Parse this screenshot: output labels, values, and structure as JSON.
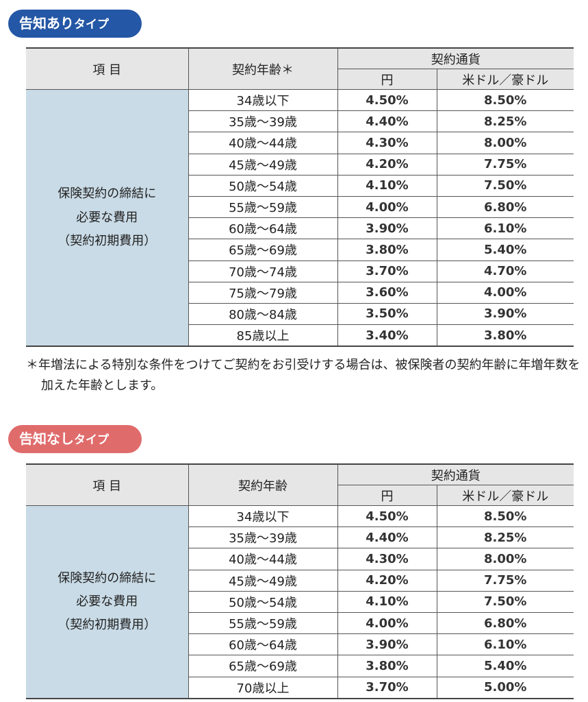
{
  "section1": {
    "badge_main": "告知あり",
    "badge_sub": "タイプ",
    "headers": {
      "item": "項 目",
      "age": "契約年齢＊",
      "currency": "契約通貨",
      "yen": "円",
      "usd_aud": "米ドル／豪ドル"
    },
    "item_label": [
      "保険契約の締結に",
      "必要な費用",
      "（契約初期費用）"
    ],
    "rows": [
      {
        "age": "34歳以下",
        "yen": "4.50%",
        "usd_aud": "8.50%"
      },
      {
        "age": "35歳〜39歳",
        "yen": "4.40%",
        "usd_aud": "8.25%"
      },
      {
        "age": "40歳〜44歳",
        "yen": "4.30%",
        "usd_aud": "8.00%"
      },
      {
        "age": "45歳〜49歳",
        "yen": "4.20%",
        "usd_aud": "7.75%"
      },
      {
        "age": "50歳〜54歳",
        "yen": "4.10%",
        "usd_aud": "7.50%"
      },
      {
        "age": "55歳〜59歳",
        "yen": "4.00%",
        "usd_aud": "6.80%"
      },
      {
        "age": "60歳〜64歳",
        "yen": "3.90%",
        "usd_aud": "6.10%"
      },
      {
        "age": "65歳〜69歳",
        "yen": "3.80%",
        "usd_aud": "5.40%"
      },
      {
        "age": "70歳〜74歳",
        "yen": "3.70%",
        "usd_aud": "4.70%"
      },
      {
        "age": "75歳〜79歳",
        "yen": "3.60%",
        "usd_aud": "4.00%"
      },
      {
        "age": "80歳〜84歳",
        "yen": "3.50%",
        "usd_aud": "3.90%"
      },
      {
        "age": "85歳以上",
        "yen": "3.40%",
        "usd_aud": "3.80%"
      }
    ],
    "footnote": "＊年増法による特別な条件をつけてご契約をお引受けする場合は、被保険者の契約年齢に年増年数を加えた年齢とします。"
  },
  "section2": {
    "badge_main": "告知なし",
    "badge_sub": "タイプ",
    "headers": {
      "item": "項 目",
      "age": "契約年齢",
      "currency": "契約通貨",
      "yen": "円",
      "usd_aud": "米ドル／豪ドル"
    },
    "item_label": [
      "保険契約の締結に",
      "必要な費用",
      "（契約初期費用）"
    ],
    "rows": [
      {
        "age": "34歳以下",
        "yen": "4.50%",
        "usd_aud": "8.50%"
      },
      {
        "age": "35歳〜39歳",
        "yen": "4.40%",
        "usd_aud": "8.25%"
      },
      {
        "age": "40歳〜44歳",
        "yen": "4.30%",
        "usd_aud": "8.00%"
      },
      {
        "age": "45歳〜49歳",
        "yen": "4.20%",
        "usd_aud": "7.75%"
      },
      {
        "age": "50歳〜54歳",
        "yen": "4.10%",
        "usd_aud": "7.50%"
      },
      {
        "age": "55歳〜59歳",
        "yen": "4.00%",
        "usd_aud": "6.80%"
      },
      {
        "age": "60歳〜64歳",
        "yen": "3.90%",
        "usd_aud": "6.10%"
      },
      {
        "age": "65歳〜69歳",
        "yen": "3.80%",
        "usd_aud": "5.40%"
      },
      {
        "age": "70歳以上",
        "yen": "3.70%",
        "usd_aud": "5.00%"
      }
    ]
  }
}
